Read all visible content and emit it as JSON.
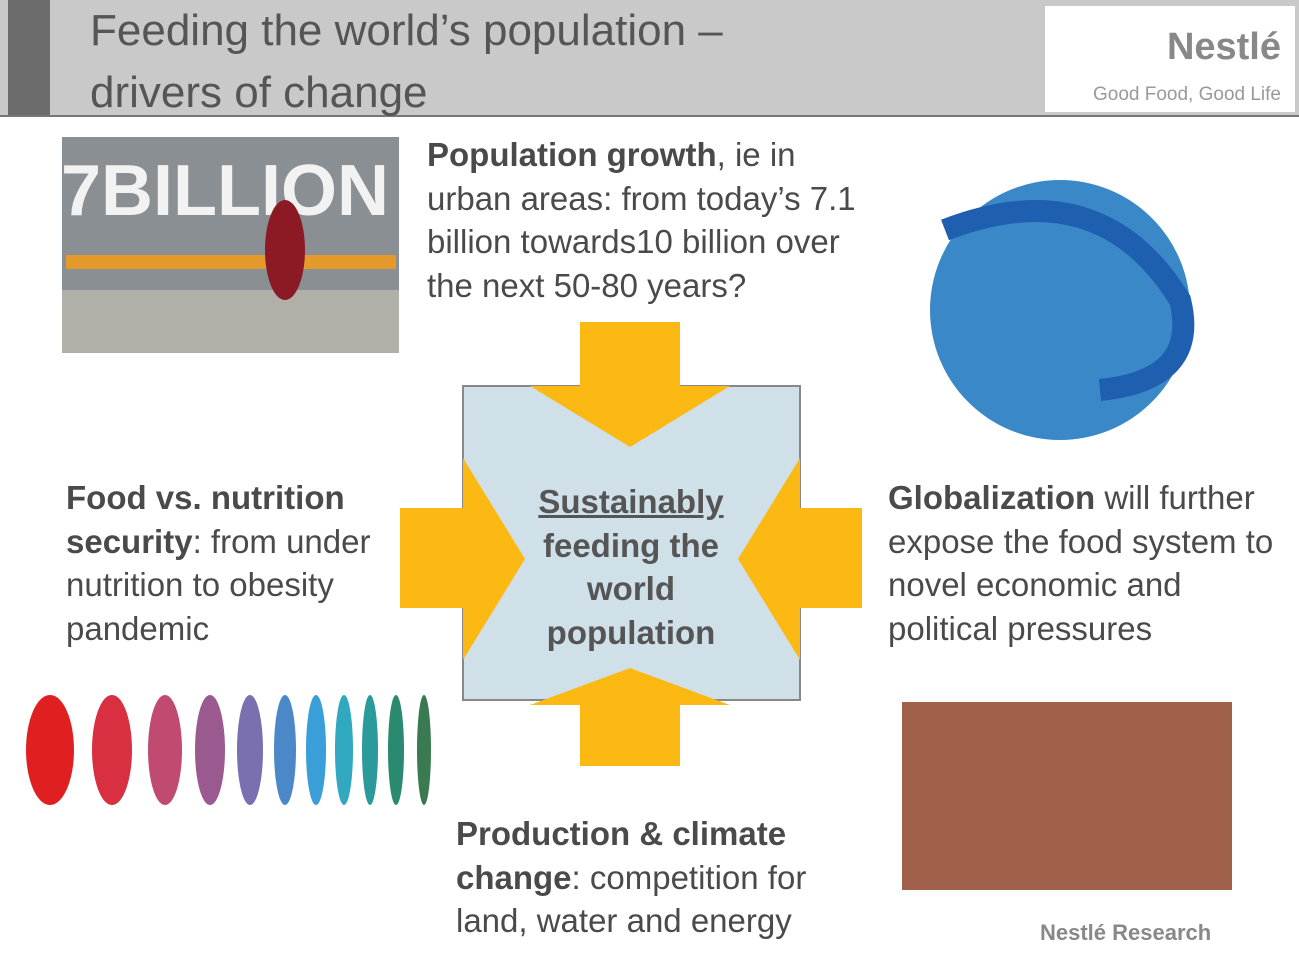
{
  "header": {
    "title": [
      "Feeding the world’s population –",
      "drivers of change"
    ],
    "logo": {
      "brand": "Nestlé",
      "tagline": "Good Food, Good Life"
    }
  },
  "images": {
    "billboard": "7BILLION"
  },
  "center": [
    "Sustainably",
    "feeding the",
    "world",
    "population"
  ],
  "drivers": [
    {
      "bold": "Population growth",
      "text": ", ie in urban areas: from today’s 7.1 billion towards10 billion over the next 50-80 years?"
    },
    {
      "bold": "Food vs. nutrition security",
      "text": ": from under nutrition to obesity pandemic"
    },
    {
      "bold": "Globalization",
      "text": " will further expose the food system to novel economic and political pressures"
    },
    {
      "bold": "Production & climate change",
      "text": ": competition for land, water and energy"
    }
  ],
  "footer": "Nestlé Research"
}
